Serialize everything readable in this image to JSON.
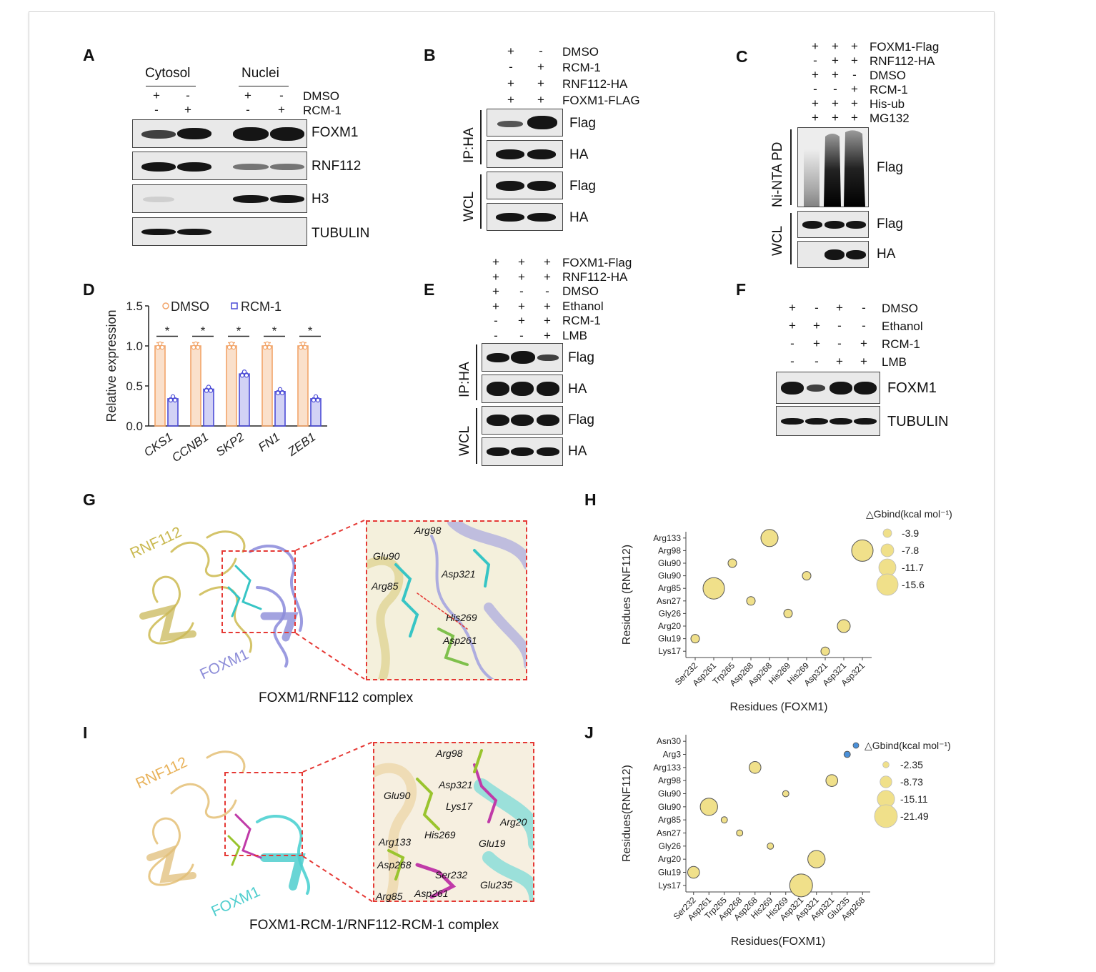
{
  "panels": {
    "A": "A",
    "B": "B",
    "C": "C",
    "D": "D",
    "E": "E",
    "F": "F",
    "G": "G",
    "H": "H",
    "I": "I",
    "J": "J"
  },
  "panelA": {
    "group1": "Cytosol",
    "group2": "Nuclei",
    "row1": "DMSO",
    "row2": "RCM-1",
    "signs_row1": [
      "+",
      "-",
      "+",
      "-"
    ],
    "signs_row2": [
      "-",
      "+",
      "-",
      "+"
    ],
    "blots": [
      "FOXM1",
      "RNF112",
      "H3",
      "TUBULIN"
    ]
  },
  "panelB": {
    "rows": [
      "DMSO",
      "RCM-1",
      "RNF112-HA",
      "FOXM1-FLAG"
    ],
    "signs": [
      [
        "+",
        "-"
      ],
      [
        "-",
        "+"
      ],
      [
        "+",
        "+"
      ],
      [
        "+",
        "+"
      ]
    ],
    "blots": [
      "Flag",
      "HA",
      "Flag",
      "HA"
    ],
    "side": [
      "IP:HA",
      "WCL"
    ]
  },
  "panelC": {
    "rows": [
      "FOXM1-Flag",
      "RNF112-HA",
      "DMSO",
      "RCM-1",
      "His-ub",
      "MG132"
    ],
    "signs": [
      [
        "+",
        "+",
        "+"
      ],
      [
        "-",
        "+",
        "+"
      ],
      [
        "+",
        "+",
        "-"
      ],
      [
        "-",
        "-",
        "+"
      ],
      [
        "+",
        "+",
        "+"
      ],
      [
        "+",
        "+",
        "+"
      ]
    ],
    "blots": [
      "Flag",
      "Flag",
      "HA"
    ],
    "side": [
      "Ni-NTA PD",
      "WCL"
    ]
  },
  "panelD": {
    "chart_data": {
      "type": "bar",
      "categories": [
        "CKS1",
        "CCNB1",
        "SKP2",
        "FN1",
        "ZEB1"
      ],
      "series": [
        {
          "name": "DMSO",
          "values": [
            1.0,
            1.0,
            1.0,
            1.0,
            1.0
          ],
          "color": "#f2a56a"
        },
        {
          "name": "RCM-1",
          "values": [
            0.34,
            0.46,
            0.65,
            0.43,
            0.34
          ],
          "color": "#4b4bd6"
        }
      ],
      "ylabel": "Relative expression",
      "ylim": [
        0,
        1.5
      ],
      "yticks": [
        "0.0",
        "0.5",
        "1.0",
        "1.5"
      ],
      "significance": [
        "*",
        "*",
        "*",
        "*",
        "*"
      ]
    }
  },
  "panelE": {
    "rows": [
      "FOXM1-Flag",
      "RNF112-HA",
      "DMSO",
      "Ethanol",
      "RCM-1",
      "LMB"
    ],
    "signs": [
      [
        "+",
        "+",
        "+"
      ],
      [
        "+",
        "+",
        "+"
      ],
      [
        "+",
        "-",
        "-"
      ],
      [
        "+",
        "+",
        "+"
      ],
      [
        "-",
        "+",
        "+"
      ],
      [
        "-",
        "-",
        "+"
      ]
    ],
    "blots": [
      "Flag",
      "HA",
      "Flag",
      "HA"
    ],
    "side": [
      "IP:HA",
      "WCL"
    ]
  },
  "panelF": {
    "rows": [
      "DMSO",
      "Ethanol",
      "RCM-1",
      "LMB"
    ],
    "signs": [
      [
        "+",
        "-",
        "+",
        "-"
      ],
      [
        "+",
        "+",
        "-",
        "-"
      ],
      [
        "-",
        "+",
        "-",
        "+"
      ],
      [
        "-",
        "-",
        "+",
        "+"
      ]
    ],
    "blots": [
      "FOXM1",
      "TUBULIN"
    ]
  },
  "panelG": {
    "label_rnf": "RNF112",
    "label_foxm": "FOXM1",
    "caption": "FOXM1/RNF112 complex",
    "zoom_labels": [
      "Arg98",
      "Glu90",
      "Asp321",
      "Arg85",
      "His269",
      "Asp261"
    ]
  },
  "panelH": {
    "chart_data": {
      "type": "scatter",
      "xlabel": "Residues (FOXM1)",
      "ylabel": "Residues (RNF112)",
      "x_categories": [
        "Ser232",
        "Asp261",
        "Trp265",
        "Asp268",
        "Asp268",
        "His269",
        "His269",
        "Asp321",
        "Asp321",
        "Asp321"
      ],
      "y_categories": [
        "Lys17",
        "Glu19",
        "Arg20",
        "Gly26",
        "Asn27",
        "Arg85",
        "Glu90",
        "Glu90",
        "Arg98",
        "Arg133"
      ],
      "legend_title": "△Gbind(kcal mol⁻¹)",
      "legend_values": [
        "-3.9",
        "-7.8",
        "-11.7",
        "-15.6"
      ],
      "points": [
        {
          "x": 0,
          "y": 1,
          "value": -3.9
        },
        {
          "x": 1,
          "y": 5,
          "value": -15.6
        },
        {
          "x": 2,
          "y": 7,
          "value": -3.9
        },
        {
          "x": 3,
          "y": 4,
          "value": -3.9
        },
        {
          "x": 4,
          "y": 9,
          "value": -11.7
        },
        {
          "x": 5,
          "y": 3,
          "value": -3.9
        },
        {
          "x": 6,
          "y": 6,
          "value": -3.9
        },
        {
          "x": 7,
          "y": 0,
          "value": -3.9
        },
        {
          "x": 8,
          "y": 2,
          "value": -7.8
        },
        {
          "x": 9,
          "y": 8,
          "value": -15.6
        }
      ]
    }
  },
  "panelI": {
    "label_rnf": "RNF112",
    "label_foxm": "FOXM1",
    "caption": "FOXM1-RCM-1/RNF112-RCM-1 complex",
    "zoom_labels": [
      "Arg98",
      "Glu90",
      "Asp321",
      "Lys17",
      "Arg20",
      "Arg133",
      "His269",
      "Glu19",
      "Asp268",
      "Ser232",
      "Arg85",
      "Asp261",
      "Glu235"
    ]
  },
  "panelJ": {
    "chart_data": {
      "type": "scatter",
      "xlabel": "Residues(FOXM1)",
      "ylabel": "Residues(RNF112)",
      "x_categories": [
        "Ser232",
        "Asp261",
        "Trp265",
        "Asp268",
        "Asp268",
        "His269",
        "His269",
        "Asp321",
        "Asp321",
        "Asp321",
        "Glu235",
        "Asp268"
      ],
      "y_categories": [
        "Lys17",
        "Glu19",
        "Arg20",
        "Gly26",
        "Asn27",
        "Arg85",
        "Glu90",
        "Glu90",
        "Arg98",
        "Arg133",
        "Arg3",
        "Asn30"
      ],
      "legend_title": "△Gbind(kcal mol⁻¹)",
      "legend_values": [
        "-2.35",
        "-8.73",
        "-15.11",
        "-21.49"
      ],
      "points": [
        {
          "x": 0,
          "y": 1,
          "value": -8.73
        },
        {
          "x": 1,
          "y": 6,
          "value": -15.11
        },
        {
          "x": 2,
          "y": 5,
          "value": -2.35
        },
        {
          "x": 3,
          "y": 4,
          "value": -2.35
        },
        {
          "x": 4,
          "y": 9,
          "value": -8.73
        },
        {
          "x": 5,
          "y": 3,
          "value": -2.35
        },
        {
          "x": 6,
          "y": 7,
          "value": -2.35
        },
        {
          "x": 7,
          "y": 0,
          "value": -21.49
        },
        {
          "x": 8,
          "y": 2,
          "value": -15.11
        },
        {
          "x": 9,
          "y": 8,
          "value": -8.73
        },
        {
          "x": 10,
          "y": 10,
          "value": 2.35
        }
      ]
    }
  },
  "colors": {
    "dmso": "#f2a56a",
    "rcm": "#4b4bd6",
    "bubble": "#f0e08a",
    "bubble_stroke": "#555555",
    "positive": "#4a90d9",
    "dash": "#e53935",
    "rnf_ribbon": "#d4c46a",
    "foxm_ribbon": "#9b9be0",
    "foxm_ribbon_I": "#5fd6d6",
    "rnf_ribbon_I": "#e8c98a"
  }
}
